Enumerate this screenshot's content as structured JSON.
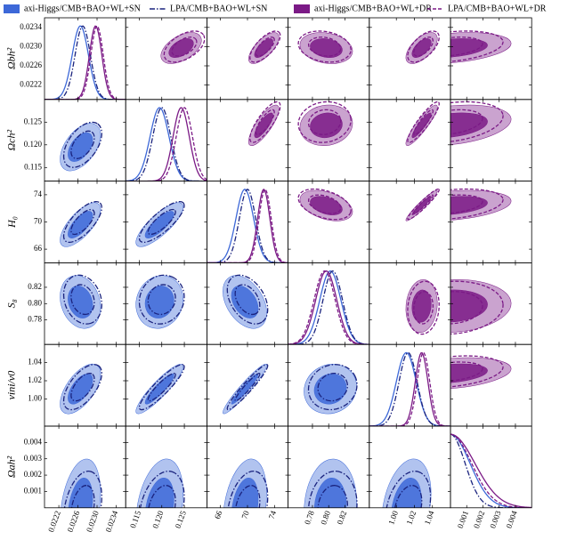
{
  "chart_data": {
    "type": "corner",
    "parameters": [
      {
        "label": "Ωbh²",
        "lim": [
          0.0219,
          0.0236
        ],
        "ticks": [
          0.0222,
          0.0226,
          {
            "value": 0.023,
            "label": "0.0230"
          },
          0.0234
        ]
      },
      {
        "label": "Ωch²",
        "lim": [
          0.112,
          0.13
        ],
        "ticks": [
          0.115,
          {
            "value": 0.12,
            "label": "0.120"
          },
          0.125
        ]
      },
      {
        "label": "H₀",
        "lim": [
          64,
          76
        ],
        "ticks": [
          66,
          70,
          74
        ]
      },
      {
        "label": "S₈",
        "lim": [
          0.75,
          0.85
        ],
        "ticks": [
          0.78,
          {
            "value": 0.8,
            "label": "0.80"
          },
          0.82
        ]
      },
      {
        "label": "vini/v0",
        "lim": [
          0.97,
          1.06
        ],
        "ticks": [
          {
            "value": 1.0,
            "label": "1.00"
          },
          1.02,
          1.04
        ]
      },
      {
        "label": "Ωah²",
        "lim": [
          0,
          0.005
        ],
        "ticks": [
          0.001,
          0.002,
          0.003,
          0.004
        ]
      }
    ],
    "series": [
      {
        "name": "axi-Higgs/CMB+BAO+WL+SN",
        "color": "#3d68d8",
        "style": "filled",
        "triangle": "lower",
        "means": [
          0.02265,
          0.1195,
          69.6,
          0.802,
          1.011,
          0
        ],
        "sigmas": [
          0.00017,
          0.0021,
          1.3,
          0.013,
          0.011,
          0.0012
        ]
      },
      {
        "name": "LPA/CMB+BAO+WL+SN",
        "color": "#1a237e",
        "style": "dashdot",
        "triangle": "lower",
        "means": [
          0.0227,
          0.12,
          70.0,
          0.805,
          1.013,
          0
        ],
        "sigmas": [
          0.00016,
          0.002,
          1.2,
          0.012,
          0.01,
          0.0009
        ]
      },
      {
        "name": "axi-Higgs/CMB+BAO+WL+DR",
        "color": "#7b1a86",
        "style": "filled",
        "triangle": "upper",
        "means": [
          0.02297,
          0.1243,
          72.4,
          0.797,
          1.028,
          0
        ],
        "sigmas": [
          0.00013,
          0.0018,
          0.9,
          0.013,
          0.007,
          0.0015
        ]
      },
      {
        "name": "LPA/CMB+BAO+WL+DR",
        "color": "#7b1a86",
        "style": "dashed",
        "triangle": "upper",
        "means": [
          0.023,
          0.125,
          72.6,
          0.795,
          1.03,
          0
        ],
        "sigmas": [
          0.00013,
          0.0018,
          0.9,
          0.013,
          0.007,
          0.0013
        ]
      }
    ],
    "correlations": [
      0.5,
      0.7,
      -0.2,
      0.6,
      0.3,
      0.8,
      0.1,
      0.9,
      0.3,
      -0.4,
      0.95,
      0.3,
      0.1,
      0.1,
      0.3
    ]
  }
}
